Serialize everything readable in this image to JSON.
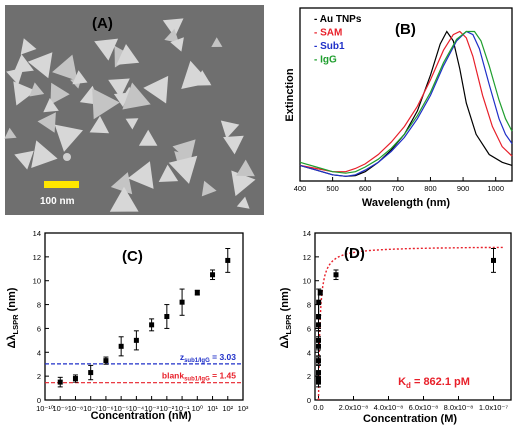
{
  "panels": {
    "a": {
      "label": "(A)",
      "scalebar_text": "100 nm",
      "colors": {
        "background": "#6f6f6f",
        "particle": "#d7d7d7",
        "scalebar": "#ffe600"
      }
    }
  },
  "chart_data": [
    {
      "id": "B",
      "type": "line",
      "panel_label": "(B)",
      "xlabel": "Wavelength (nm)",
      "ylabel": "Extinction",
      "xlim": [
        400,
        1050
      ],
      "xticks": [
        400,
        500,
        600,
        700,
        800,
        900,
        1000
      ],
      "legend_position": "top-left",
      "series": [
        {
          "name": "Au TNPs",
          "color": "#000000",
          "x": [
            400,
            450,
            500,
            540,
            570,
            600,
            640,
            680,
            720,
            760,
            800,
            830,
            850,
            870,
            890,
            910,
            940,
            980,
            1020,
            1050
          ],
          "y": [
            0.1,
            0.07,
            0.04,
            0.03,
            0.035,
            0.06,
            0.12,
            0.2,
            0.3,
            0.45,
            0.68,
            0.88,
            0.96,
            0.9,
            0.72,
            0.5,
            0.3,
            0.17,
            0.12,
            0.1
          ]
        },
        {
          "name": "SAM",
          "color": "#e8202a",
          "x": [
            400,
            450,
            500,
            540,
            570,
            600,
            640,
            680,
            720,
            760,
            800,
            840,
            870,
            890,
            910,
            930,
            960,
            990,
            1020,
            1050
          ],
          "y": [
            0.1,
            0.08,
            0.06,
            0.06,
            0.08,
            0.11,
            0.17,
            0.25,
            0.35,
            0.48,
            0.65,
            0.84,
            0.94,
            0.96,
            0.92,
            0.8,
            0.55,
            0.35,
            0.22,
            0.16
          ]
        },
        {
          "name": "Sub1",
          "color": "#1f2fc8",
          "x": [
            400,
            450,
            500,
            540,
            570,
            600,
            640,
            680,
            720,
            760,
            800,
            840,
            880,
            910,
            930,
            950,
            980,
            1010,
            1030,
            1050
          ],
          "y": [
            0.1,
            0.07,
            0.04,
            0.03,
            0.04,
            0.07,
            0.12,
            0.19,
            0.28,
            0.4,
            0.55,
            0.74,
            0.9,
            0.96,
            0.94,
            0.85,
            0.62,
            0.4,
            0.3,
            0.24
          ]
        },
        {
          "name": "IgG",
          "color": "#1f9e2e",
          "x": [
            400,
            450,
            500,
            540,
            570,
            600,
            640,
            680,
            720,
            760,
            800,
            840,
            880,
            910,
            935,
            955,
            980,
            1010,
            1030,
            1050
          ],
          "y": [
            0.12,
            0.09,
            0.06,
            0.05,
            0.06,
            0.09,
            0.14,
            0.21,
            0.3,
            0.42,
            0.57,
            0.76,
            0.91,
            0.96,
            0.96,
            0.9,
            0.74,
            0.52,
            0.4,
            0.32
          ]
        }
      ]
    },
    {
      "id": "C",
      "type": "scatter",
      "panel_label": "(C)",
      "xlabel": "Concentration (nM)",
      "ylabel_main": "Δλ",
      "ylabel_sub": "LSPR",
      "ylabel_unit": " (nm)",
      "x_scale": "log",
      "xlim_exp": [
        -10,
        3
      ],
      "x_tick_labels": [
        "10⁻¹⁰",
        "10⁻⁹",
        "10⁻⁸",
        "10⁻⁷",
        "10⁻⁶",
        "10⁻⁵",
        "10⁻⁴",
        "10⁻³",
        "10⁻²",
        "10⁻¹",
        "10⁰",
        "10¹",
        "10²",
        "10³"
      ],
      "ylim": [
        0,
        14
      ],
      "yticks": [
        0,
        2,
        4,
        6,
        8,
        10,
        12,
        14
      ],
      "points": [
        {
          "x_exp": -9,
          "y": 1.5,
          "err": 0.4
        },
        {
          "x_exp": -8,
          "y": 1.8,
          "err": 0.3
        },
        {
          "x_exp": -7,
          "y": 2.3,
          "err": 0.6
        },
        {
          "x_exp": -6,
          "y": 3.3,
          "err": 0.3
        },
        {
          "x_exp": -5,
          "y": 4.5,
          "err": 0.8
        },
        {
          "x_exp": -4,
          "y": 5.0,
          "err": 0.8
        },
        {
          "x_exp": -3,
          "y": 6.3,
          "err": 0.5
        },
        {
          "x_exp": -2,
          "y": 7.0,
          "err": 1.0
        },
        {
          "x_exp": -1,
          "y": 8.2,
          "err": 1.1
        },
        {
          "x_exp": 0,
          "y": 9.0,
          "err": 0.2
        },
        {
          "x_exp": 1,
          "y": 10.5,
          "err": 0.4
        },
        {
          "x_exp": 2,
          "y": 11.7,
          "err": 1.0
        }
      ],
      "hlines": [
        {
          "y": 3.03,
          "color": "#1f2fc8",
          "label_main": "z",
          "label_sub": "sub1/IgG",
          "label_val": " = 3.03"
        },
        {
          "y": 1.45,
          "color": "#e8202a",
          "label_main": "blank",
          "label_sub": "sub1/IgG",
          "label_val": " = 1.45"
        }
      ]
    },
    {
      "id": "D",
      "type": "scatter",
      "panel_label": "(D)",
      "xlabel": "Concentration (M)",
      "ylabel_main": "Δλ",
      "ylabel_sub": "LSPR",
      "ylabel_unit": " (nm)",
      "xlim": [
        -2e-09,
        1.1e-07
      ],
      "xticks": [
        0,
        2e-08,
        4e-08,
        6e-08,
        8e-08,
        1e-07
      ],
      "x_tick_labels": [
        "0.0",
        "2.0x10⁻⁸",
        "4.0x10⁻⁸",
        "6.0x10⁻⁸",
        "8.0x10⁻⁸",
        "1.0x10⁻⁷"
      ],
      "ylim": [
        0,
        14
      ],
      "yticks": [
        0,
        2,
        4,
        6,
        8,
        10,
        12,
        14
      ],
      "points": [
        {
          "x": 1e-18,
          "y": 1.5,
          "err": 0.4
        },
        {
          "x": 1e-17,
          "y": 1.8,
          "err": 0.3
        },
        {
          "x": 1e-16,
          "y": 2.3,
          "err": 0.6
        },
        {
          "x": 1e-15,
          "y": 3.3,
          "err": 0.3
        },
        {
          "x": 1e-14,
          "y": 4.5,
          "err": 0.8
        },
        {
          "x": 1e-13,
          "y": 5.0,
          "err": 0.8
        },
        {
          "x": 1e-12,
          "y": 6.3,
          "err": 0.5
        },
        {
          "x": 1e-11,
          "y": 7.0,
          "err": 1.0
        },
        {
          "x": 1e-10,
          "y": 8.2,
          "err": 1.1
        },
        {
          "x": 1e-09,
          "y": 9.0,
          "err": 0.2
        },
        {
          "x": 1e-08,
          "y": 10.5,
          "err": 0.4
        },
        {
          "x": 1e-07,
          "y": 11.7,
          "err": 1.0
        }
      ],
      "fit": {
        "type": "langmuir",
        "bmax": 12.9,
        "kd": 8.621e-10,
        "color": "#e8202a"
      },
      "annotation_main": "K",
      "annotation_sub": "d",
      "annotation_val": " = 862.1 pM",
      "annotation_color": "#e8202a"
    }
  ]
}
